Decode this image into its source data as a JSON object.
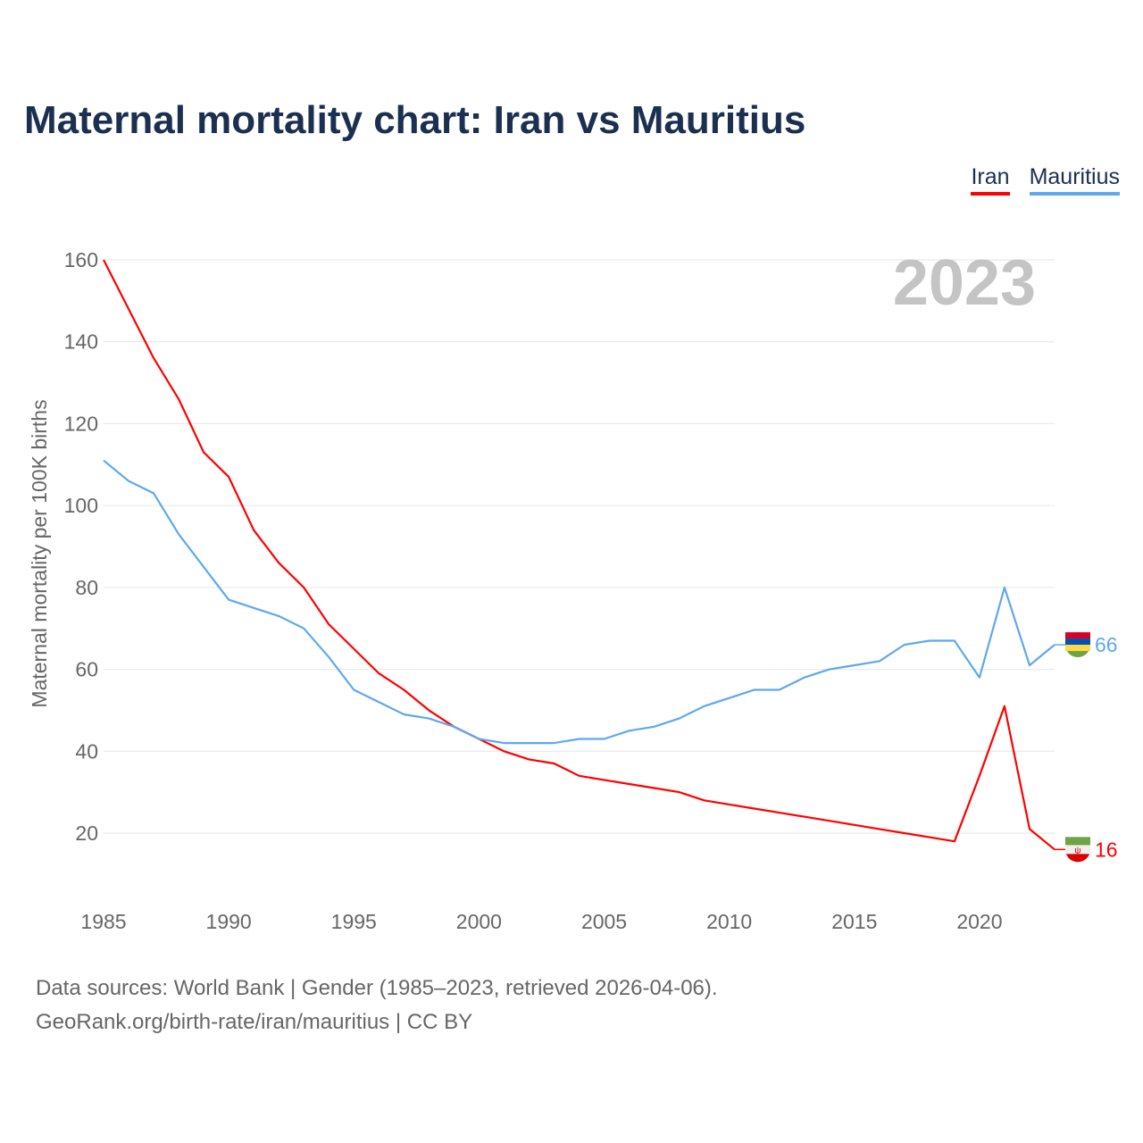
{
  "chart_data": {
    "type": "line",
    "title": "Maternal mortality chart: Iran vs Mauritius",
    "ylabel": "Maternal mortality per 100K births",
    "xlabel": "",
    "year_label": "2023",
    "xlim": [
      1985,
      2023
    ],
    "ylim": [
      0,
      160
    ],
    "x_ticks": [
      1985,
      1990,
      1995,
      2000,
      2005,
      2010,
      2015,
      2020
    ],
    "y_ticks": [
      20,
      40,
      60,
      80,
      100,
      120,
      140,
      160
    ],
    "grid": true,
    "legend_position": "top-right",
    "x": [
      1985,
      1986,
      1987,
      1988,
      1989,
      1990,
      1991,
      1992,
      1993,
      1994,
      1995,
      1996,
      1997,
      1998,
      1999,
      2000,
      2001,
      2002,
      2003,
      2004,
      2005,
      2006,
      2007,
      2008,
      2009,
      2010,
      2011,
      2012,
      2013,
      2014,
      2015,
      2016,
      2017,
      2018,
      2019,
      2020,
      2021,
      2022,
      2023
    ],
    "series": [
      {
        "name": "Iran",
        "color": "#ff0000",
        "end_label": "16",
        "values": [
          160,
          148,
          136,
          126,
          113,
          107,
          94,
          86,
          80,
          71,
          65,
          59,
          55,
          50,
          46,
          43,
          40,
          38,
          37,
          34,
          33,
          32,
          31,
          30,
          28,
          27,
          26,
          25,
          24,
          23,
          22,
          21,
          20,
          19,
          18,
          34,
          51,
          21,
          16
        ]
      },
      {
        "name": "Mauritius",
        "color": "#5ea8ee",
        "end_label": "66",
        "values": [
          111,
          106,
          103,
          93,
          85,
          77,
          75,
          73,
          70,
          63,
          55,
          52,
          49,
          48,
          46,
          43,
          42,
          42,
          42,
          43,
          43,
          45,
          46,
          48,
          51,
          53,
          55,
          55,
          58,
          60,
          61,
          62,
          66,
          67,
          67,
          58,
          80,
          61,
          66
        ]
      }
    ]
  },
  "footer": {
    "line1": "Data sources: World Bank | Gender (1985–2023, retrieved 2026-04-06).",
    "line2": "GeoRank.org/birth-rate/iran/mauritius | CC BY"
  }
}
